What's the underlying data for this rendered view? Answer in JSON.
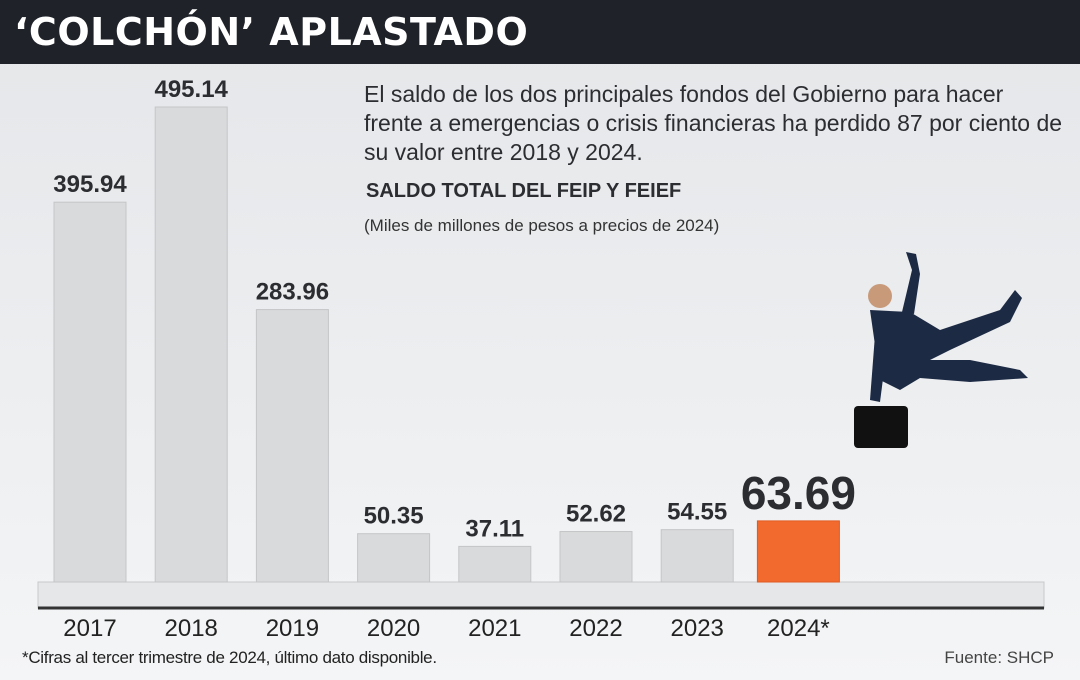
{
  "header": {
    "title": "‘COLCHÓN’ APLASTADO"
  },
  "description": "El saldo de los dos principales fondos del Gobierno para hacer frente a emergencias o crisis financieras ha perdido 87 por ciento de su valor entre 2018 y 2024.",
  "footnote": "*Cifras al tercer trimestre de 2024, último dato disponible.",
  "source": "Fuente: SHCP",
  "colors": {
    "header": "#1f2329",
    "bar": "#d9dadb",
    "highlight": "#f26a2e"
  },
  "chart_data": {
    "type": "bar",
    "title": "SALDO TOTAL DEL FEIP Y FEIEF",
    "subtitle": "(Miles de millones de pesos a precios de 2024)",
    "categories": [
      "2017",
      "2018",
      "2019",
      "2020",
      "2021",
      "2022",
      "2023",
      "2024*"
    ],
    "values": [
      395.94,
      495.14,
      283.96,
      50.35,
      37.11,
      52.62,
      54.55,
      63.69
    ],
    "labels": [
      "395.94",
      "495.14",
      "283.96",
      "50.35",
      "37.11",
      "52.62",
      "54.55",
      "63.69"
    ],
    "highlight_index": 7,
    "ylim": [
      0,
      500
    ],
    "grid": false
  }
}
